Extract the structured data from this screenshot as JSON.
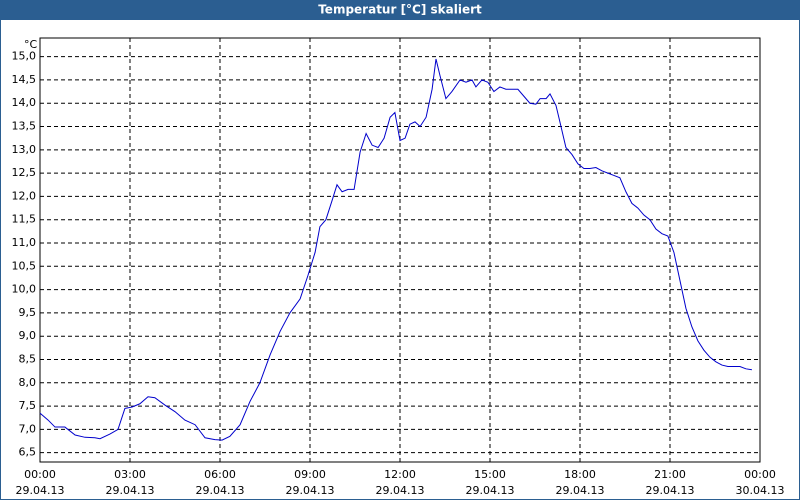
{
  "chart_data": {
    "type": "line",
    "title": "Temperatur [°C] skaliert",
    "y_unit": "°C",
    "xlim": [
      0,
      24
    ],
    "ylim": [
      6.3,
      15.4
    ],
    "grid": true,
    "xticks": [
      {
        "value": 0,
        "label": "00:00",
        "date": "29.04.13"
      },
      {
        "value": 3,
        "label": "03:00",
        "date": "29.04.13"
      },
      {
        "value": 6,
        "label": "06:00",
        "date": "29.04.13"
      },
      {
        "value": 9,
        "label": "09:00",
        "date": "29.04.13"
      },
      {
        "value": 12,
        "label": "12:00",
        "date": "29.04.13"
      },
      {
        "value": 15,
        "label": "15:00",
        "date": "29.04.13"
      },
      {
        "value": 18,
        "label": "18:00",
        "date": "29.04.13"
      },
      {
        "value": 21,
        "label": "21:00",
        "date": "29.04.13"
      },
      {
        "value": 24,
        "label": "00:00",
        "date": "30.04.13"
      }
    ],
    "yticks": [
      {
        "value": 6.5,
        "label": "6,5"
      },
      {
        "value": 7,
        "label": "7,0"
      },
      {
        "value": 7.5,
        "label": "7,5"
      },
      {
        "value": 8,
        "label": "8,0"
      },
      {
        "value": 8.5,
        "label": "8,5"
      },
      {
        "value": 9,
        "label": "9,0"
      },
      {
        "value": 9.5,
        "label": "9,5"
      },
      {
        "value": 10,
        "label": "10,0"
      },
      {
        "value": 10.5,
        "label": "10,5"
      },
      {
        "value": 11,
        "label": "11,0"
      },
      {
        "value": 11.5,
        "label": "11,5"
      },
      {
        "value": 12,
        "label": "12,0"
      },
      {
        "value": 12.5,
        "label": "12,5"
      },
      {
        "value": 13,
        "label": "13,0"
      },
      {
        "value": 13.5,
        "label": "13,5"
      },
      {
        "value": 14,
        "label": "14,0"
      },
      {
        "value": 14.5,
        "label": "14,5"
      },
      {
        "value": 15,
        "label": "15,0"
      }
    ],
    "series": [
      {
        "color": "#0000cc",
        "x": [
          0,
          0.27,
          0.5,
          0.83,
          1.17,
          1.5,
          1.83,
          2,
          2.33,
          2.6,
          2.83,
          3.07,
          3.33,
          3.6,
          3.83,
          4.17,
          4.5,
          4.83,
          5.17,
          5.5,
          5.83,
          6.07,
          6.33,
          6.67,
          7,
          7.33,
          7.67,
          8,
          8.33,
          8.67,
          8.93,
          9.17,
          9.33,
          9.53,
          9.73,
          9.9,
          10.07,
          10.27,
          10.47,
          10.67,
          10.87,
          11.07,
          11.27,
          11.47,
          11.67,
          11.83,
          12,
          12.17,
          12.33,
          12.5,
          12.67,
          12.87,
          13.07,
          13.2,
          13.33,
          13.53,
          13.73,
          14,
          14.2,
          14.4,
          14.53,
          14.73,
          14.93,
          15.13,
          15.33,
          15.53,
          15.73,
          15.93,
          16.13,
          16.33,
          16.53,
          16.67,
          16.87,
          17,
          17.2,
          17.33,
          17.53,
          17.73,
          17.93,
          18.13,
          18.33,
          18.53,
          18.73,
          18.93,
          19.13,
          19.33,
          19.53,
          19.73,
          19.93,
          20.13,
          20.33,
          20.53,
          20.73,
          20.93,
          21.13,
          21.33,
          21.53,
          21.73,
          21.93,
          22.13,
          22.33,
          22.53,
          22.73,
          22.93,
          23.13,
          23.33,
          23.53,
          23.73
        ],
        "values": [
          7.35,
          7.2,
          7.05,
          7.05,
          6.88,
          6.83,
          6.82,
          6.8,
          6.9,
          7.0,
          7.45,
          7.48,
          7.55,
          7.7,
          7.68,
          7.52,
          7.38,
          7.2,
          7.1,
          6.82,
          6.78,
          6.77,
          6.85,
          7.1,
          7.6,
          8.0,
          8.6,
          9.1,
          9.5,
          9.8,
          10.3,
          10.8,
          11.35,
          11.5,
          11.9,
          12.25,
          12.1,
          12.15,
          12.15,
          12.95,
          13.35,
          13.1,
          13.05,
          13.25,
          13.7,
          13.8,
          13.2,
          13.25,
          13.55,
          13.6,
          13.5,
          13.7,
          14.3,
          14.95,
          14.6,
          14.1,
          14.25,
          14.5,
          14.45,
          14.5,
          14.35,
          14.5,
          14.45,
          14.25,
          14.35,
          14.3,
          14.3,
          14.3,
          14.15,
          14.0,
          13.98,
          14.1,
          14.1,
          14.2,
          13.95,
          13.6,
          13.05,
          12.9,
          12.7,
          12.6,
          12.6,
          12.62,
          12.55,
          12.5,
          12.45,
          12.4,
          12.1,
          11.85,
          11.75,
          11.6,
          11.5,
          11.3,
          11.2,
          11.15,
          10.8,
          10.2,
          9.6,
          9.2,
          8.9,
          8.7,
          8.55,
          8.45,
          8.38,
          8.35,
          8.35,
          8.35,
          8.3,
          8.28
        ]
      }
    ]
  }
}
